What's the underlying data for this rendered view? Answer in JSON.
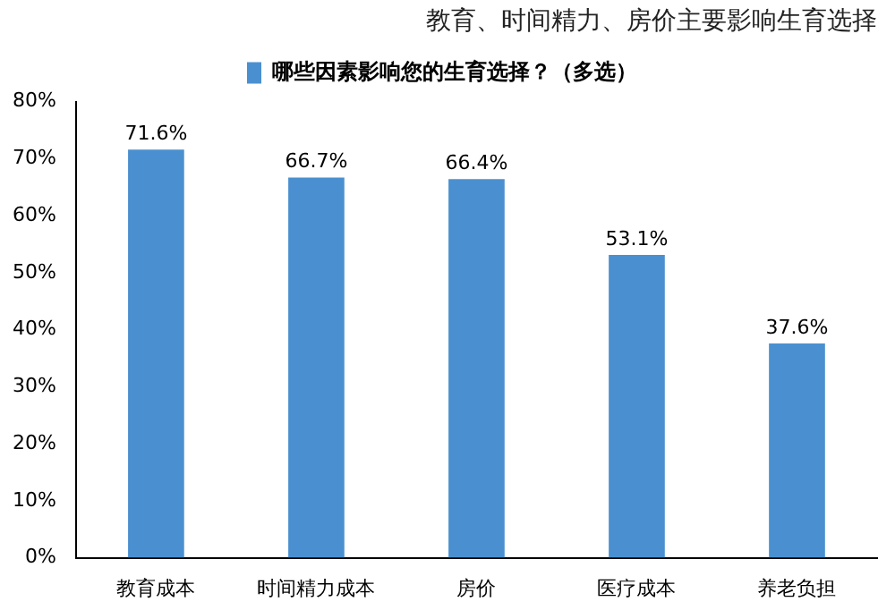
{
  "chart_data": {
    "type": "bar",
    "title": "教育、时间精力、房价主要影响生育选择",
    "categories": [
      "教育成本",
      "时间精力成本",
      "房价",
      "医疗成本",
      "养老负担"
    ],
    "series": [
      {
        "name": "哪些因素影响您的生育选择？（多选）",
        "color": "#4a90d0",
        "values": [
          71.6,
          66.7,
          66.4,
          53.1,
          37.6
        ]
      }
    ],
    "ylim": [
      0,
      80
    ],
    "yticks": [
      {
        "value": 0,
        "label": "0%"
      },
      {
        "value": 10,
        "label": "10%"
      },
      {
        "value": 20,
        "label": "20%"
      },
      {
        "value": 30,
        "label": "30%"
      },
      {
        "value": 40,
        "label": "40%"
      },
      {
        "value": 50,
        "label": "50%"
      },
      {
        "value": 60,
        "label": "60%"
      },
      {
        "value": 70,
        "label": "70%"
      },
      {
        "value": 80,
        "label": "80%"
      }
    ],
    "value_labels": [
      "71.6%",
      "66.7%",
      "66.4%",
      "53.1%",
      "37.6%"
    ],
    "grid": false,
    "legend": "top"
  }
}
